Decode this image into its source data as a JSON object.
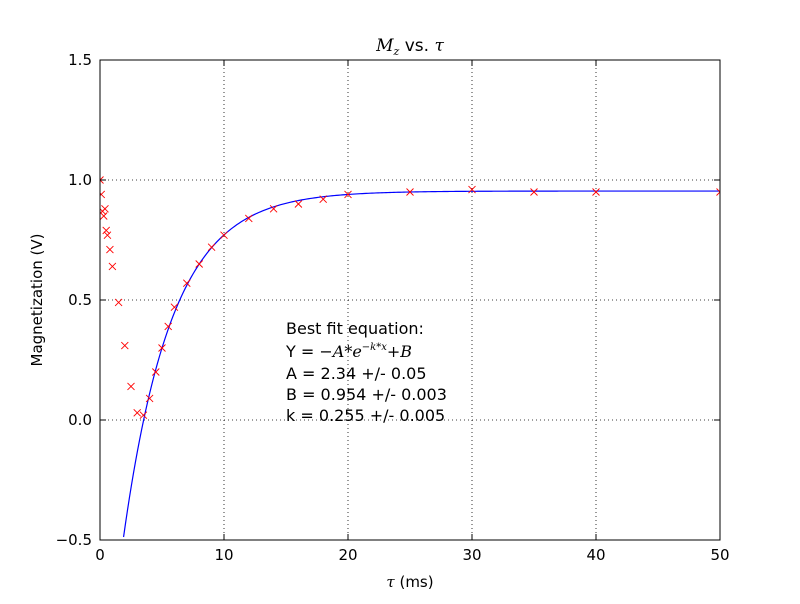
{
  "chart_data": {
    "type": "scatter",
    "title": {
      "math": "M",
      "math_sub": "z",
      "text": " vs. ",
      "math2": "τ"
    },
    "xlabel": {
      "math": "τ",
      "text": " (ms)"
    },
    "ylabel": "Magnetization (V)",
    "xlim": [
      0,
      50
    ],
    "ylim": [
      -0.5,
      1.5
    ],
    "xticks": [
      0,
      10,
      20,
      30,
      40,
      50
    ],
    "yticks": [
      -0.5,
      0.0,
      0.5,
      1.0,
      1.5
    ],
    "xtick_labels": [
      "0",
      "10",
      "20",
      "30",
      "40",
      "50"
    ],
    "ytick_labels": [
      "−0.5",
      "0.0",
      "0.5",
      "1.0",
      "1.5"
    ],
    "grid": true,
    "series": [
      {
        "kind": "markers",
        "marker": "x",
        "color": "#ff0000",
        "x": [
          0.0,
          0.1,
          0.2,
          0.3,
          0.4,
          0.5,
          0.6,
          0.8,
          1.0,
          1.5,
          2.0,
          2.5,
          3.0,
          3.5,
          4.0,
          4.5,
          5.0,
          5.5,
          6.0,
          7.0,
          8.0,
          9.0,
          10.0,
          12.0,
          14.0,
          16.0,
          18.0,
          20.0,
          25.0,
          30.0,
          35.0,
          40.0,
          50.0
        ],
        "y": [
          1.0,
          0.94,
          0.87,
          0.85,
          0.88,
          0.79,
          0.77,
          0.71,
          0.64,
          0.49,
          0.31,
          0.14,
          0.03,
          0.02,
          0.09,
          0.2,
          0.3,
          0.39,
          0.47,
          0.57,
          0.65,
          0.72,
          0.77,
          0.84,
          0.88,
          0.9,
          0.92,
          0.94,
          0.95,
          0.96,
          0.95,
          0.95,
          0.95
        ]
      },
      {
        "kind": "line",
        "color": "#0000ff",
        "model": {
          "A": 2.34,
          "B": 0.954,
          "k": 0.255
        },
        "x_range": [
          1.9,
          50
        ]
      }
    ],
    "annotation": {
      "heading": "Best fit equation:",
      "equation_prefix": "Y = ",
      "equation": "−A*e",
      "equation_exp": "−k*x",
      "equation_suffix": "+B",
      "lines": [
        "A = 2.34 +/- 0.05",
        "B = 0.954 +/- 0.003",
        "k = 0.255 +/- 0.005"
      ]
    }
  }
}
